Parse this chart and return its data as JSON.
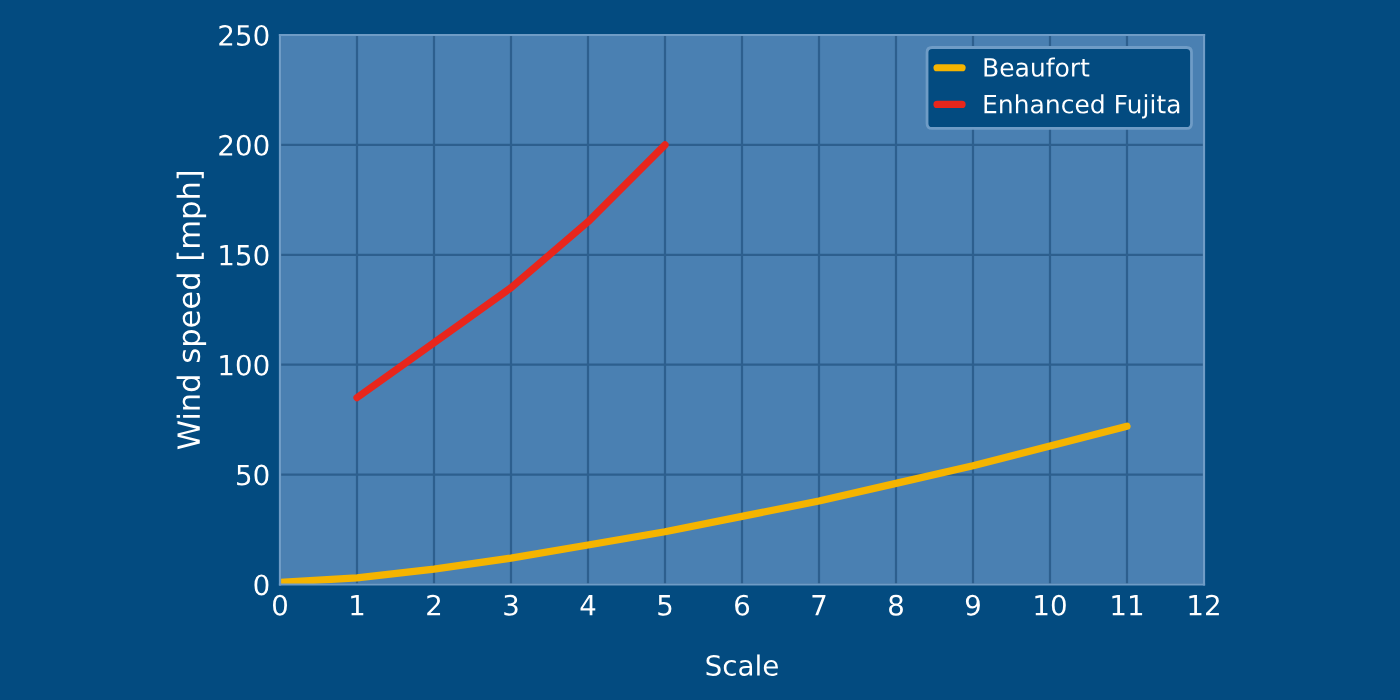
{
  "chart_data": {
    "type": "line",
    "xlabel": "Scale",
    "ylabel": "Wind speed [mph]",
    "series": [
      {
        "name": "Beaufort",
        "color": "#f5b400",
        "x": [
          0,
          1,
          2,
          3,
          4,
          5,
          6,
          7,
          8,
          9,
          10,
          11
        ],
        "values": [
          1,
          3,
          7,
          12,
          18,
          24,
          31,
          38,
          46,
          54,
          63,
          72
        ]
      },
      {
        "name": "Enhanced Fujita",
        "color": "#e8261c",
        "x": [
          1,
          2,
          3,
          4,
          5
        ],
        "values": [
          85,
          110,
          135,
          165,
          200
        ]
      }
    ],
    "xlim": [
      0,
      12
    ],
    "xticks": [
      0,
      1,
      2,
      3,
      4,
      5,
      6,
      7,
      8,
      9,
      10,
      11,
      12
    ],
    "ylim": [
      0,
      250
    ],
    "yticks": [
      0,
      50,
      100,
      150,
      200,
      250
    ],
    "grid": true,
    "legend": "top right",
    "marker": "none",
    "line_style": "solid"
  }
}
